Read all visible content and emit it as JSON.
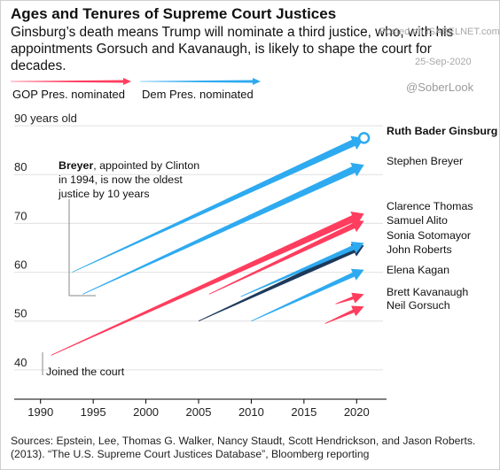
{
  "header": {
    "title": "Ages and Tenures of Supreme Court Justices",
    "subtitle": "Ginsburg’s death means Trump will nominate a third justice, who, with his appointments Gorsuch and Kavanaugh, is likely to shape the court for decades."
  },
  "watermark": {
    "site": "Posted on ISABELNET.com",
    "date": "25-Sep-2020",
    "handle": "@SoberLook"
  },
  "legend": {
    "gop": "GOP Pres. nominated",
    "dem": "Dem Pres. nominated"
  },
  "colors": {
    "gop": "#ff3d5e",
    "dem": "#2eaaf0",
    "highlight": "#1d3a5c",
    "grid": "#e0e0e0",
    "axis": "#000000"
  },
  "annotations": {
    "breyer": [
      "Breyer",
      ", appointed by Clinton",
      "in 1994, is now the oldest",
      "justice by 10 years"
    ],
    "joined": "Joined the court"
  },
  "chart_data": {
    "type": "line",
    "title": "Ages and Tenures of Supreme Court Justices",
    "xlim": [
      1987.5,
      2022.5
    ],
    "ylim": [
      34,
      94
    ],
    "xticks": [
      1990,
      1995,
      2000,
      2005,
      2010,
      2015,
      2020
    ],
    "yticks": [
      40,
      50,
      60,
      70,
      80,
      90
    ],
    "ytick_labels": [
      "40",
      "50",
      "60",
      "70",
      "80",
      "90 years old"
    ],
    "grid": true,
    "series": [
      {
        "name": "Ruth Bader Ginsburg",
        "party": "dem",
        "x": [
          1993,
          2020.7
        ],
        "y": [
          60,
          87.5
        ]
      },
      {
        "name": "Stephen Breyer",
        "party": "dem",
        "x": [
          1994,
          2020.7
        ],
        "y": [
          55.5,
          82
        ]
      },
      {
        "name": "Clarence Thomas",
        "party": "gop",
        "x": [
          1991,
          2020.7
        ],
        "y": [
          43,
          72
        ]
      },
      {
        "name": "Samuel Alito",
        "party": "gop",
        "x": [
          2006,
          2020.7
        ],
        "y": [
          55.5,
          70.5
        ]
      },
      {
        "name": "Sonia Sotomayor",
        "party": "dem",
        "x": [
          2009,
          2020.7
        ],
        "y": [
          55,
          66
        ]
      },
      {
        "name": "John Roberts",
        "party": "gop",
        "x": [
          2005,
          2020.7
        ],
        "y": [
          50,
          65.5
        ]
      },
      {
        "name": "Elena Kagan",
        "party": "dem",
        "x": [
          2010,
          2020.7
        ],
        "y": [
          50,
          60.5
        ]
      },
      {
        "name": "Brett Kavanaugh",
        "party": "gop",
        "x": [
          2018,
          2020.7
        ],
        "y": [
          53.5,
          55.5
        ]
      },
      {
        "name": "Neil Gorsuch",
        "party": "gop",
        "x": [
          2017,
          2020.7
        ],
        "y": [
          49.5,
          53
        ]
      }
    ],
    "source": "Sources: Epstein, Lee, Thomas G. Walker, Nancy Staudt, Scott Hendrickson, and Jason Roberts. (2013). “The U.S. Supreme Court Justices Database”, Bloomberg reporting"
  }
}
